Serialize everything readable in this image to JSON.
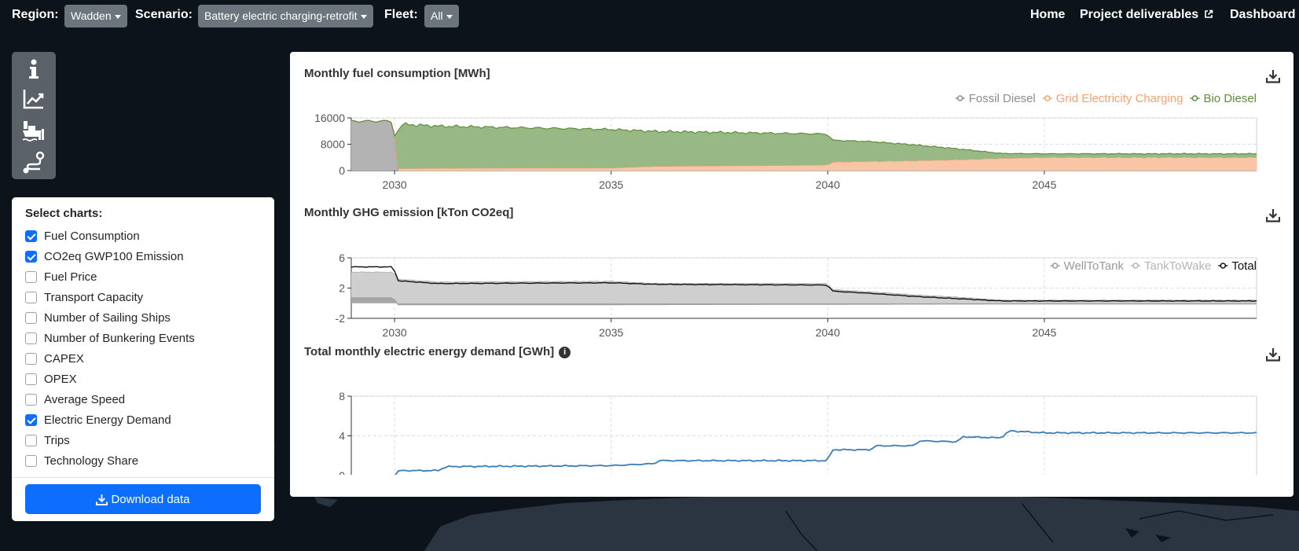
{
  "topbar": {
    "region_label": "Region:",
    "region_value": "Wadden",
    "scenario_label": "Scenario:",
    "scenario_value": "Battery electric charging-retrofit",
    "fleet_label": "Fleet:",
    "fleet_value": "All",
    "nav": {
      "home": "Home",
      "deliverables": "Project deliverables",
      "dashboard": "Dashboard"
    }
  },
  "iconbar": [
    "info-icon",
    "chart-line-icon",
    "ship-icon",
    "route-icon"
  ],
  "panel": {
    "title": "Select charts:",
    "items": [
      {
        "label": "Fuel Consumption",
        "checked": true
      },
      {
        "label": "CO2eq GWP100 Emission",
        "checked": true
      },
      {
        "label": "Fuel Price",
        "checked": false
      },
      {
        "label": "Transport Capacity",
        "checked": false
      },
      {
        "label": "Number of Sailing Ships",
        "checked": false
      },
      {
        "label": "Number of Bunkering Events",
        "checked": false
      },
      {
        "label": "CAPEX",
        "checked": false
      },
      {
        "label": "OPEX",
        "checked": false
      },
      {
        "label": "Average Speed",
        "checked": false
      },
      {
        "label": "Electric Energy Demand",
        "checked": true
      },
      {
        "label": "Trips",
        "checked": false
      },
      {
        "label": "Technology Share",
        "checked": false
      }
    ],
    "download_label": "Download data"
  },
  "colors": {
    "fossil_diesel": "#8c8c8c",
    "grid_electricity": "#f5a26f",
    "bio_diesel": "#5b8f3a",
    "well_to_tank": "#999999",
    "tank_to_wake": "#b5b5b5",
    "total": "#111111",
    "electric_demand": "#3a7db8",
    "primary": "#0d6efd"
  },
  "chart_data": [
    {
      "type": "area",
      "title": "Monthly fuel consumption [MWh]",
      "x_ticks": [
        "2030",
        "2035",
        "2040",
        "2045"
      ],
      "y_ticks": [
        "16000",
        "8000",
        "0"
      ],
      "ylim": [
        0,
        16000
      ],
      "xlim": [
        2029.0,
        2049.9
      ],
      "legend": "top-right",
      "stacked": true,
      "series": [
        {
          "name": "Fossil Diesel",
          "points": [
            [
              2029.0,
              15000
            ],
            [
              2030.0,
              15000
            ],
            [
              2030.01,
              0
            ],
            [
              2049.9,
              0
            ]
          ]
        },
        {
          "name": "Grid Electricity Charging",
          "points": [
            [
              2029.0,
              0
            ],
            [
              2030.0,
              0
            ],
            [
              2030.1,
              600
            ],
            [
              2031.0,
              700
            ],
            [
              2035.0,
              800
            ],
            [
              2036.0,
              1300
            ],
            [
              2040.0,
              1700
            ],
            [
              2040.1,
              2600
            ],
            [
              2041.0,
              2800
            ],
            [
              2042.0,
              3000
            ],
            [
              2043.0,
              3300
            ],
            [
              2044.0,
              3700
            ],
            [
              2045.0,
              4000
            ],
            [
              2049.9,
              4000
            ]
          ]
        },
        {
          "name": "Bio Diesel",
          "points": [
            [
              2029.0,
              0
            ],
            [
              2030.0,
              0
            ],
            [
              2030.1,
              13500
            ],
            [
              2031.0,
              12800
            ],
            [
              2035.0,
              11700
            ],
            [
              2036.0,
              10600
            ],
            [
              2040.0,
              9400
            ],
            [
              2040.1,
              6600
            ],
            [
              2041.0,
              6000
            ],
            [
              2042.0,
              4800
            ],
            [
              2043.0,
              3300
            ],
            [
              2044.0,
              1500
            ],
            [
              2045.0,
              1100
            ],
            [
              2049.9,
              1100
            ]
          ]
        }
      ]
    },
    {
      "type": "line",
      "title": "Monthly GHG emission [kTon CO2eq]",
      "x_ticks": [
        "2030",
        "2035",
        "2040",
        "2045"
      ],
      "y_ticks": [
        "6",
        "2",
        "-2"
      ],
      "ylim": [
        -2,
        6
      ],
      "xlim": [
        2029.0,
        2049.9
      ],
      "legend": "top-right",
      "series": [
        {
          "name": "WellToTank",
          "points": [
            [
              2029.0,
              0.7
            ],
            [
              2030.0,
              0.7
            ],
            [
              2030.01,
              -0.2
            ],
            [
              2035.0,
              -0.2
            ],
            [
              2040.0,
              -0.15
            ],
            [
              2045.0,
              -0.1
            ],
            [
              2049.9,
              -0.1
            ]
          ]
        },
        {
          "name": "TankToWake",
          "points": [
            [
              2029.0,
              4.1
            ],
            [
              2030.0,
              4.1
            ],
            [
              2030.01,
              3.2
            ],
            [
              2031.0,
              2.8
            ],
            [
              2035.0,
              2.9
            ],
            [
              2036.0,
              2.6
            ],
            [
              2040.0,
              2.6
            ],
            [
              2040.1,
              1.8
            ],
            [
              2041.0,
              1.5
            ],
            [
              2042.0,
              1.1
            ],
            [
              2043.0,
              0.8
            ],
            [
              2044.0,
              0.4
            ],
            [
              2045.0,
              0.4
            ],
            [
              2049.9,
              0.4
            ]
          ]
        },
        {
          "name": "Total",
          "points": [
            [
              2029.0,
              4.8
            ],
            [
              2030.0,
              4.8
            ],
            [
              2030.01,
              3.0
            ],
            [
              2031.0,
              2.6
            ],
            [
              2035.0,
              2.7
            ],
            [
              2036.0,
              2.5
            ],
            [
              2040.0,
              2.4
            ],
            [
              2040.1,
              1.6
            ],
            [
              2041.0,
              1.3
            ],
            [
              2042.0,
              0.9
            ],
            [
              2043.0,
              0.6
            ],
            [
              2044.0,
              0.3
            ],
            [
              2045.0,
              0.3
            ],
            [
              2049.9,
              0.3
            ]
          ]
        }
      ]
    },
    {
      "type": "line",
      "title": "Total monthly electric energy demand [GWh]",
      "x_ticks": [
        "2030",
        "2035",
        "2040",
        "2045"
      ],
      "y_ticks": [
        "8",
        "4",
        "0"
      ],
      "ylim": [
        0,
        8
      ],
      "xlim": [
        2029.0,
        2049.9
      ],
      "series": [
        {
          "name": "",
          "points": [
            [
              2029.0,
              0
            ],
            [
              2030.0,
              0
            ],
            [
              2030.1,
              0.5
            ],
            [
              2031.0,
              0.5
            ],
            [
              2031.2,
              0.9
            ],
            [
              2035.0,
              1.0
            ],
            [
              2036.0,
              1.2
            ],
            [
              2036.1,
              1.5
            ],
            [
              2040.0,
              1.5
            ],
            [
              2040.1,
              2.6
            ],
            [
              2041.0,
              2.6
            ],
            [
              2041.1,
              3.0
            ],
            [
              2042.0,
              3.0
            ],
            [
              2042.1,
              3.5
            ],
            [
              2043.0,
              3.4
            ],
            [
              2043.1,
              3.9
            ],
            [
              2044.0,
              3.8
            ],
            [
              2044.2,
              4.5
            ],
            [
              2045.0,
              4.3
            ],
            [
              2049.9,
              4.3
            ]
          ]
        }
      ]
    }
  ]
}
